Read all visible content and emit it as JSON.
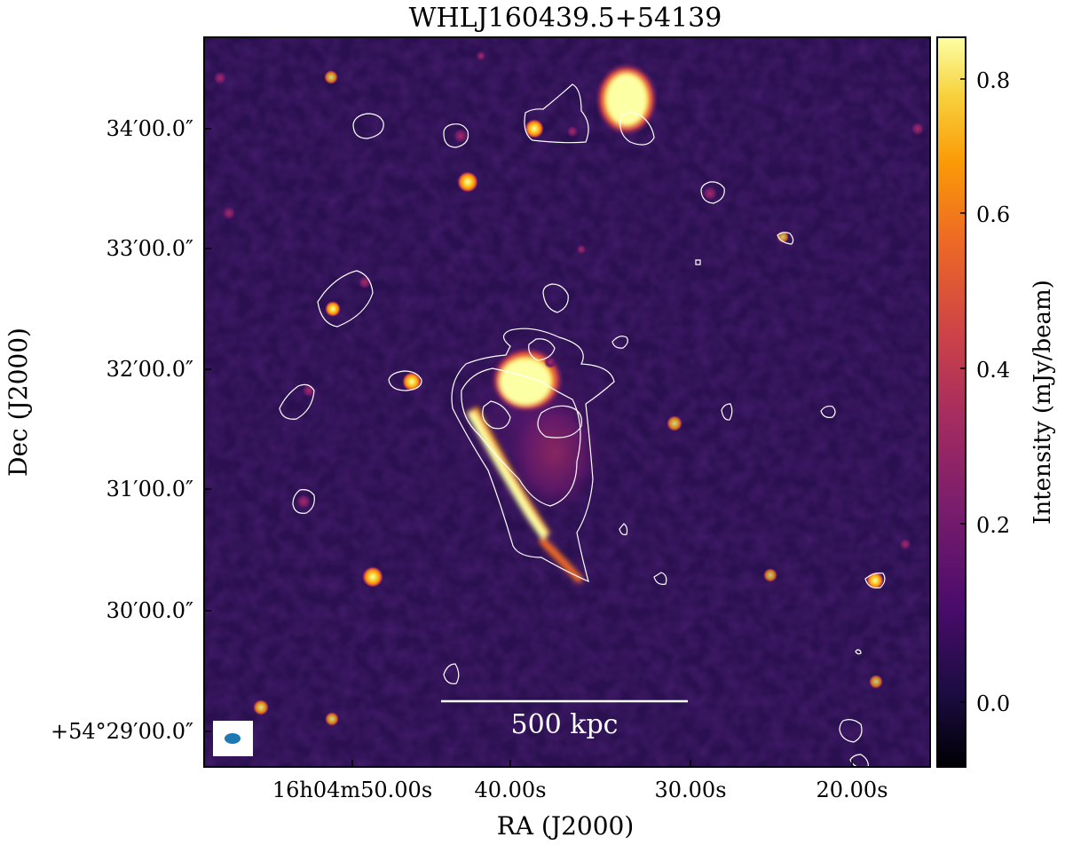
{
  "figure": {
    "title": "WHLJ160439.5+54139",
    "xlabel": "RA (J2000)",
    "ylabel": "Dec (J2000)",
    "x_ticks": [
      "16h04m50.00s",
      "40.00s",
      "30.00s",
      "20.00s"
    ],
    "y_ticks": [
      "34′00.0″",
      "33′00.0″",
      "32′00.0″",
      "31′00.0″",
      "30′00.0″",
      "+54°29′00.0″"
    ],
    "scalebar_label": "500 kpc",
    "colorbar": {
      "label": "Intensity (mJy/beam)",
      "ticks": [
        "0.8",
        "0.6",
        "0.4",
        "0.2",
        "0.0"
      ],
      "range": [
        -0.08,
        0.85
      ],
      "colormap": "inferno"
    },
    "colors": {
      "background_noise": "#2a1050",
      "contour": "#ffffff",
      "beam": "#1f77b4",
      "scalebar": "#ffffff"
    }
  }
}
